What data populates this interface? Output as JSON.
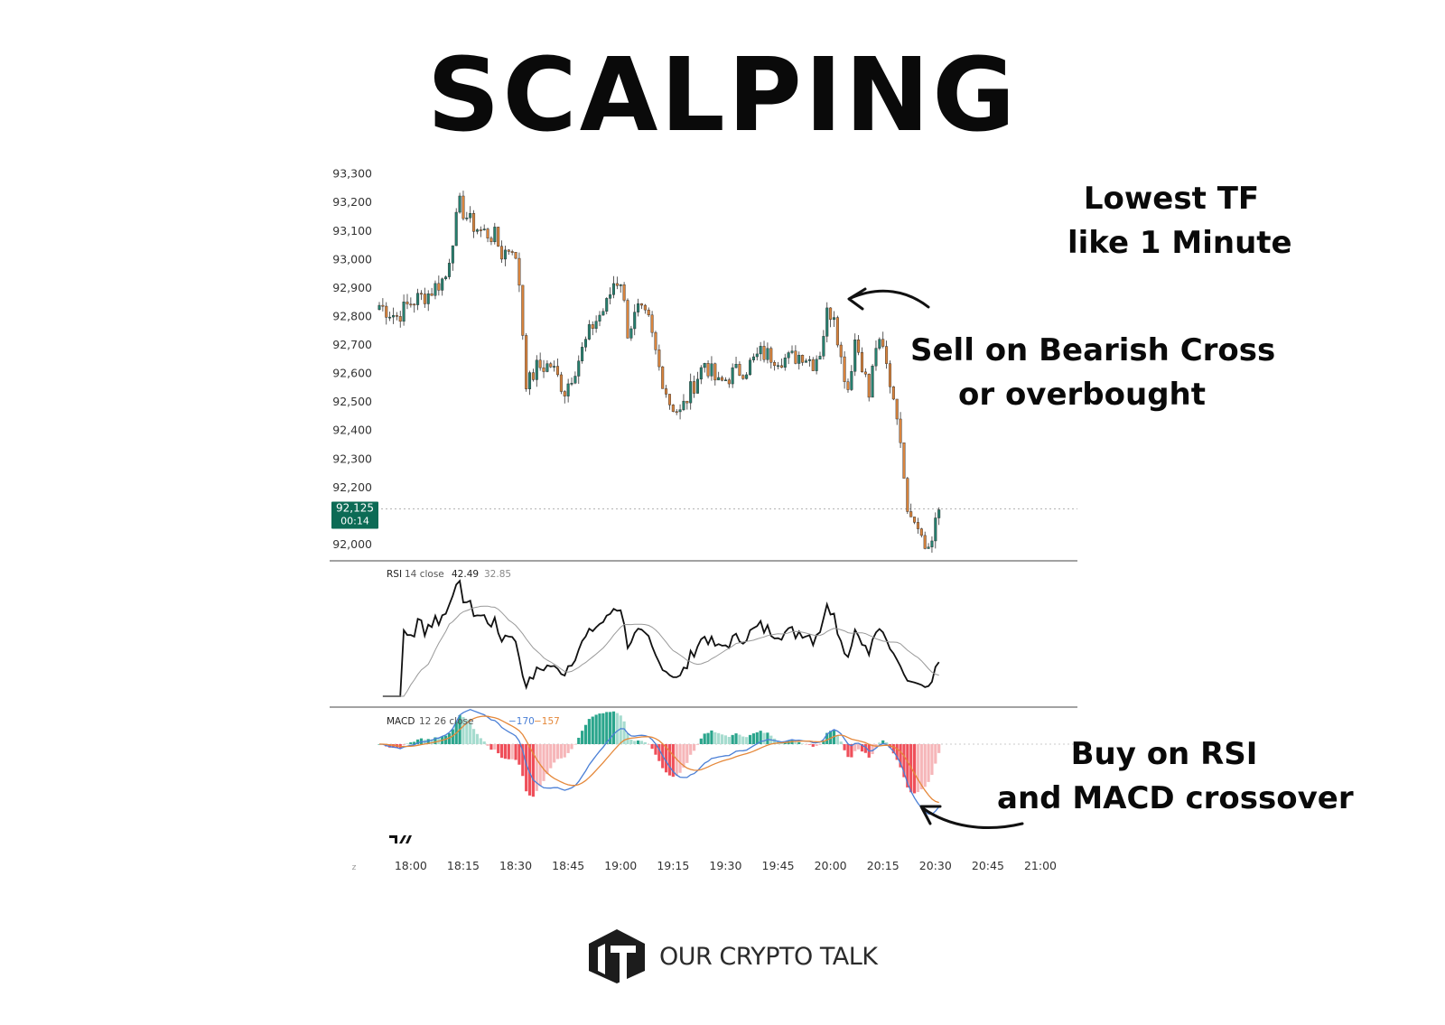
{
  "title": "SCALPING",
  "annotations": {
    "timeframe": [
      "Lowest TF",
      "like 1 Minute"
    ],
    "sell": [
      "Sell on Bearish Cross",
      "or overbought"
    ],
    "buy": [
      "Buy on RSI",
      "and MACD crossover"
    ]
  },
  "brand": {
    "name": "OUR CRYPTO TALK",
    "logo_icon": "cube-logo-icon"
  },
  "colors": {
    "up": "#26806f",
    "down": "#d9843d",
    "price_badge": "#0c6b55",
    "macd_line": "#4a7fd6",
    "signal_line": "#e5883a",
    "hist_pos": "#2aa58c",
    "hist_neg": "#ef4f5a",
    "rsi_line": "#111111",
    "rsi_ma": "#999999"
  },
  "chart_data": [
    {
      "type": "candlestick",
      "price_axis": {
        "ticks": [
          "93,300",
          "93,200",
          "93,100",
          "93,000",
          "92,900",
          "92,800",
          "92,700",
          "92,600",
          "92,500",
          "92,400",
          "92,300",
          "92,200",
          "92,000"
        ],
        "ylim": [
          91950,
          93320
        ]
      },
      "current_price": {
        "value": "92,125",
        "countdown": "00:14"
      },
      "x_axis": {
        "ticks": [
          "18:00",
          "18:15",
          "18:30",
          "18:45",
          "19:00",
          "19:15",
          "19:30",
          "19:45",
          "20:00",
          "20:15",
          "20:30",
          "20:45",
          "21:00"
        ]
      },
      "close_path": [
        [
          "17:51",
          92840
        ],
        [
          "17:56",
          92800
        ],
        [
          "18:00",
          92850
        ],
        [
          "18:05",
          92880
        ],
        [
          "18:10",
          92940
        ],
        [
          "18:12",
          93080
        ],
        [
          "18:14",
          93190
        ],
        [
          "18:17",
          93130
        ],
        [
          "18:20",
          93100
        ],
        [
          "18:24",
          93080
        ],
        [
          "18:26",
          93020
        ],
        [
          "18:29",
          93050
        ],
        [
          "18:31",
          92920
        ],
        [
          "18:33",
          92550
        ],
        [
          "18:36",
          92620
        ],
        [
          "18:40",
          92630
        ],
        [
          "18:44",
          92540
        ],
        [
          "18:48",
          92650
        ],
        [
          "18:52",
          92770
        ],
        [
          "18:56",
          92840
        ],
        [
          "18:58",
          92920
        ],
        [
          "19:00",
          92930
        ],
        [
          "19:02",
          92750
        ],
        [
          "19:05",
          92820
        ],
        [
          "19:08",
          92780
        ],
        [
          "19:11",
          92620
        ],
        [
          "19:14",
          92500
        ],
        [
          "19:17",
          92460
        ],
        [
          "19:20",
          92540
        ],
        [
          "19:24",
          92640
        ],
        [
          "19:28",
          92560
        ],
        [
          "19:32",
          92600
        ],
        [
          "19:36",
          92620
        ],
        [
          "19:40",
          92670
        ],
        [
          "19:44",
          92660
        ],
        [
          "19:48",
          92650
        ],
        [
          "19:52",
          92670
        ],
        [
          "19:55",
          92640
        ],
        [
          "19:57",
          92680
        ],
        [
          "19:59",
          92810
        ],
        [
          "20:01",
          92820
        ],
        [
          "20:03",
          92650
        ],
        [
          "20:05",
          92550
        ],
        [
          "20:07",
          92720
        ],
        [
          "20:09",
          92640
        ],
        [
          "20:11",
          92520
        ],
        [
          "20:13",
          92700
        ],
        [
          "20:15",
          92680
        ],
        [
          "20:17",
          92570
        ],
        [
          "20:19",
          92470
        ],
        [
          "20:22",
          92120
        ],
        [
          "20:25",
          92060
        ],
        [
          "20:27",
          91990
        ],
        [
          "20:29",
          92010
        ],
        [
          "20:31",
          92120
        ]
      ]
    },
    {
      "type": "line",
      "title": "RSI",
      "legend": {
        "name": "RSI",
        "params": "14 close",
        "value": "42.49",
        "ma_value": "32.85"
      }
    },
    {
      "type": "bar",
      "title": "MACD",
      "legend": {
        "name": "MACD",
        "params": "12 26 close",
        "macd_value": "−170",
        "signal_value": "−157"
      }
    }
  ]
}
